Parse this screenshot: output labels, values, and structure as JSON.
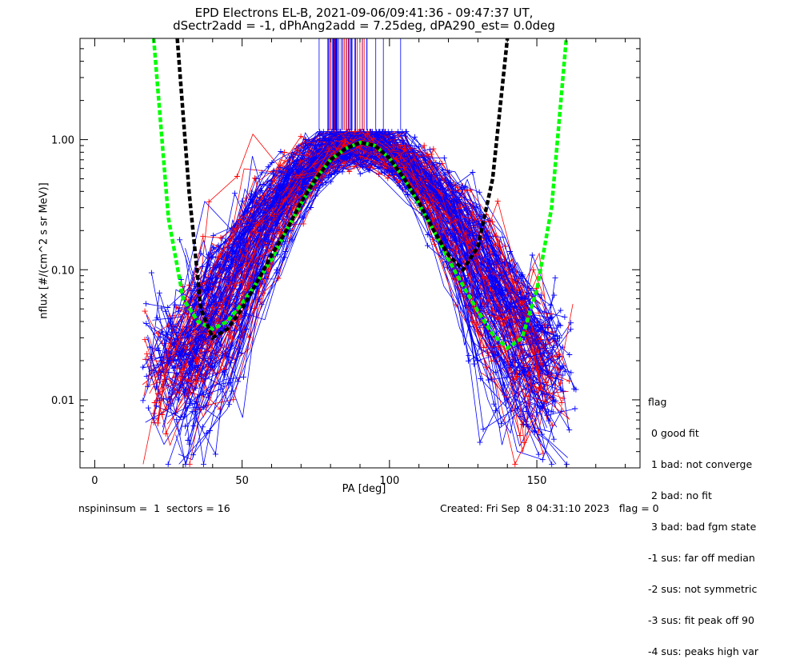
{
  "chart_data": {
    "type": "line",
    "title": "EPD Electrons EL-B, 2021-09-06/09:41:36 - 09:47:37 UT,",
    "subtitle": "dSectr2add = -1, dPhAng2add = 7.25deg, dPA290_est=   0.0deg",
    "xlabel": "PA [deg]",
    "ylabel": "nflux [#/(cm^2 s sr MeV)]",
    "xlim": [
      -5,
      185
    ],
    "ylim": [
      0.003,
      6.0
    ],
    "y_scale": "log",
    "x_ticks": [
      "0",
      "50",
      "100",
      "150"
    ],
    "y_ticks": [
      "0.01",
      "0.10",
      "1.00"
    ],
    "legend": {
      "title": "flag",
      "entries": [
        " 0 good fit",
        " 1 bad: not converge",
        " 2 bad: no fit",
        " 3 bad: bad fgm state",
        "-1 sus: far off median",
        "-2 sus: not symmetric",
        "-3 sus: fit peak off 90",
        "-4 sus: peaks high var"
      ]
    },
    "series": [
      {
        "color": "#00ff00",
        "style": "dashed",
        "x": [
          20,
          25,
          30,
          35,
          40,
          45,
          50,
          55,
          60,
          65,
          70,
          75,
          80,
          85,
          90,
          95,
          100,
          105,
          110,
          115,
          120,
          125,
          130,
          135,
          140,
          145,
          150,
          155,
          160
        ],
        "y": [
          6.0,
          0.25,
          0.06,
          0.04,
          0.035,
          0.04,
          0.055,
          0.08,
          0.12,
          0.2,
          0.32,
          0.5,
          0.7,
          0.85,
          0.95,
          0.9,
          0.72,
          0.5,
          0.32,
          0.2,
          0.12,
          0.075,
          0.048,
          0.032,
          0.025,
          0.03,
          0.07,
          0.3,
          6.0
        ]
      },
      {
        "color": "#000000",
        "style": "dashed",
        "x": [
          28,
          32,
          36,
          40,
          45,
          50,
          55,
          60,
          65,
          70,
          75,
          80,
          85,
          90,
          95,
          100,
          105,
          110,
          115,
          120,
          125,
          130,
          135,
          140
        ],
        "y": [
          6.0,
          0.4,
          0.05,
          0.03,
          0.035,
          0.05,
          0.08,
          0.13,
          0.2,
          0.33,
          0.5,
          0.7,
          0.85,
          0.95,
          0.9,
          0.72,
          0.5,
          0.33,
          0.2,
          0.13,
          0.1,
          0.15,
          0.5,
          6.0
        ]
      }
    ],
    "colors": {
      "red": "#ff0000",
      "blue": "#0000ff",
      "green": "#00ff00",
      "black": "#000000"
    }
  },
  "footer": {
    "left": "nspininsum =  1  sectors = 16",
    "right": "Created: Fri Sep  8 04:31:10 2023   flag = 0"
  }
}
